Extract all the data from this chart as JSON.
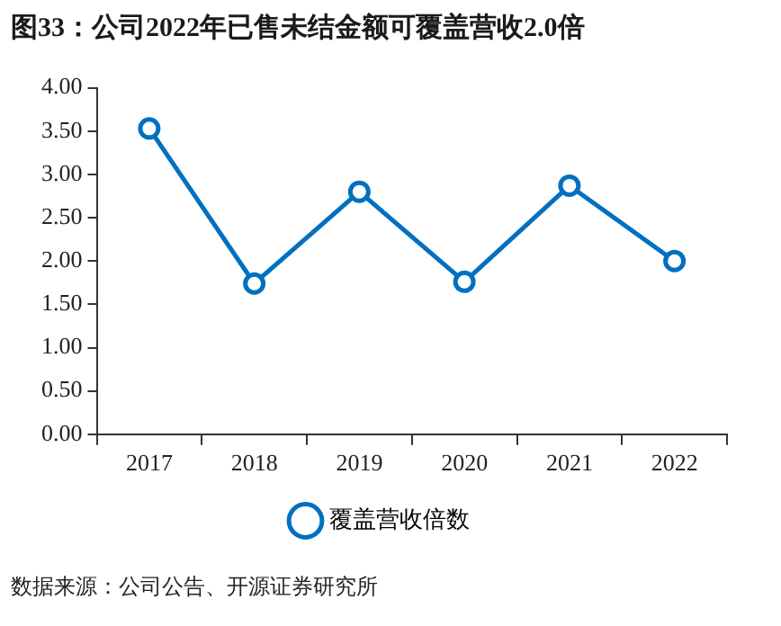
{
  "chart_data": {
    "type": "line",
    "title": "图33：公司2022年已售未结金额可覆盖营收2.0倍",
    "categories": [
      "2017",
      "2018",
      "2019",
      "2020",
      "2021",
      "2022"
    ],
    "series": [
      {
        "name": "覆盖营收倍数",
        "color": "#0070c0",
        "values": [
          3.53,
          1.74,
          2.8,
          1.76,
          2.87,
          2.0
        ]
      }
    ],
    "ylim": [
      0,
      4
    ],
    "yticks": [
      {
        "value": 0,
        "label": "0.00"
      },
      {
        "value": 0.5,
        "label": "0.50"
      },
      {
        "value": 1,
        "label": "1.00"
      },
      {
        "value": 1.5,
        "label": "1.50"
      },
      {
        "value": 2,
        "label": "2.00"
      },
      {
        "value": 2.5,
        "label": "2.50"
      },
      {
        "value": 3,
        "label": "3.00"
      },
      {
        "value": 3.5,
        "label": "3.50"
      },
      {
        "value": 4,
        "label": "4.00"
      }
    ],
    "grid": false,
    "legend": "bottom",
    "marker": "circle",
    "line_style": "solid",
    "annotations": [
      "数据来源：公司公告、开源证券研究所"
    ]
  }
}
